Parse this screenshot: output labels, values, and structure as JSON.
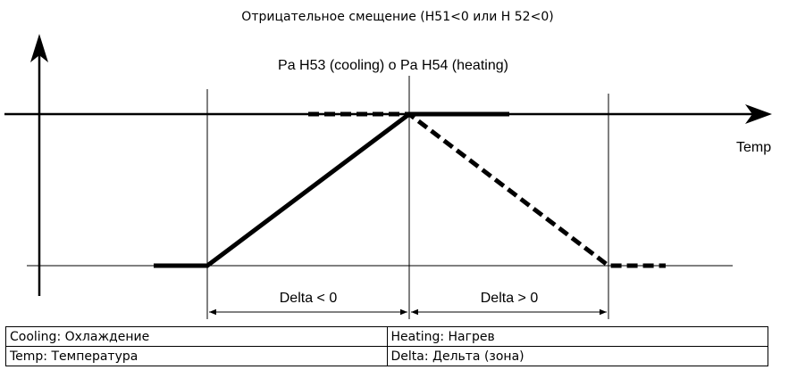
{
  "title": "Отрицательное смещение (H51<0 или H 52<0)",
  "diagram": {
    "parameter_label": "Pa H53 (cooling) o Pa H54 (heating)",
    "x_axis_label": "Temp",
    "delta_left": "Delta < 0",
    "delta_right": "Delta > 0"
  },
  "table": {
    "rows": [
      [
        "Cooling: Охлаждение",
        "Heating: Нагрев"
      ],
      [
        "Temp: Температура",
        "Delta: Дельта (зона)"
      ]
    ]
  }
}
